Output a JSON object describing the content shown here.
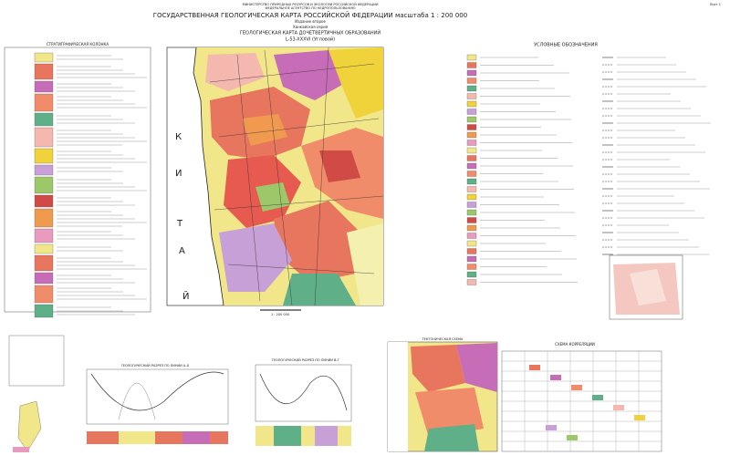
{
  "header": {
    "ministry": "МИНИСТЕРСТВО ПРИРОДНЫХ РЕСУРСОВ И ЭКОЛОГИИ РОССИЙСКОЙ ФЕДЕРАЦИИ",
    "agency": "ФЕДЕРАЛЬНОЕ АГЕНТСТВО ПО НЕДРОПОЛЬЗОВАНИЮ",
    "title": "ГОСУДАРСТВЕННАЯ ГЕОЛОГИЧЕСКАЯ КАРТА РОССИЙСКОЙ ФЕДЕРАЦИИ масштаба 1 : 200 000",
    "edition": "Издание второе",
    "series": "Ханкайская серия",
    "map_title": "ГЕОЛОГИЧЕСКАЯ КАРТА ДОЧЕТВЕРТИЧНЫХ ОБРАЗОВАНИЙ",
    "sheet": "L-53-XXXVI (Угловой)",
    "sheet_no": "Лист 1"
  },
  "sections": {
    "stratigraphy": "СТРАТИГРАФИЧЕСКАЯ КОЛОНКА",
    "legend": "УСЛОВНЫЕ ОБОЗНАЧЕНИЯ",
    "section_ab": "ГЕОЛОГИЧЕСКИЙ РАЗРЕЗ ПО ЛИНИИ А–Б",
    "section_vg": "ГЕОЛОГИЧЕСКИЙ РАЗРЕЗ ПО ЛИНИИ В–Г",
    "tectonic": "ТЕКТОНИЧЕСКАЯ СХЕМА",
    "correlation": "СХЕМА КОРРЕЛЯЦИИ",
    "scale": "1 : 200 000"
  },
  "map_labels": {
    "country": [
      "К",
      "И",
      "Т",
      "А",
      "Й"
    ]
  }
}
